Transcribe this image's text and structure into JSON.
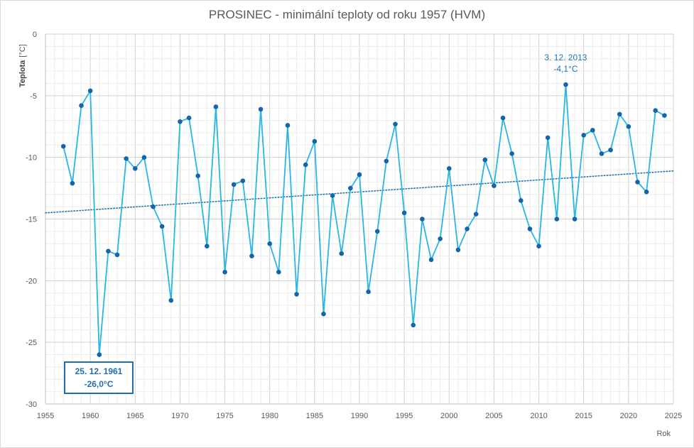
{
  "chart_data": {
    "type": "line",
    "title": "PROSINEC - minimální teploty od roku 1957 (HVM)",
    "xlabel": "Rok",
    "ylabel": "Teplota",
    "ylabel_unit": "[°C]",
    "xlim": [
      1955,
      2025
    ],
    "ylim": [
      -30,
      0
    ],
    "x_ticks": [
      "1955",
      "1960",
      "1965",
      "1970",
      "1975",
      "1980",
      "1985",
      "1990",
      "1995",
      "2000",
      "2005",
      "2010",
      "2015",
      "2020",
      "2025"
    ],
    "y_ticks": [
      "0",
      "-5",
      "-10",
      "-15",
      "-20",
      "-25",
      "-30"
    ],
    "grid": true,
    "colors": {
      "line": "#29b6e3",
      "marker": "#1565a8",
      "trend": "#1f78b4",
      "annotation": "#1f77b4"
    },
    "series": [
      {
        "x": [
          1957,
          1958,
          1959,
          1960,
          1961,
          1962,
          1963,
          1964,
          1965,
          1966,
          1967,
          1968,
          1969,
          1970,
          1971,
          1972,
          1973,
          1974,
          1975,
          1976,
          1977,
          1978,
          1979,
          1980,
          1981,
          1982,
          1983,
          1984,
          1985,
          1986,
          1987,
          1988,
          1989,
          1990,
          1991,
          1992,
          1993,
          1994,
          1995,
          1996,
          1997,
          1998,
          1999,
          2000,
          2001,
          2002,
          2003,
          2004,
          2005,
          2006,
          2007,
          2008,
          2009,
          2010,
          2011,
          2012,
          2013,
          2014,
          2015,
          2016,
          2017,
          2018,
          2019,
          2020,
          2021,
          2022,
          2023,
          2024
        ],
        "values": [
          -9.1,
          -12.1,
          -5.8,
          -4.6,
          -26.0,
          -17.6,
          -17.9,
          -10.1,
          -10.9,
          -10.0,
          -14.0,
          -15.6,
          -21.6,
          -7.1,
          -6.8,
          -11.5,
          -17.2,
          -5.9,
          -19.3,
          -12.2,
          -11.9,
          -18.0,
          -6.1,
          -17.0,
          -19.3,
          -7.4,
          -21.1,
          -10.6,
          -8.7,
          -22.7,
          -13.1,
          -17.8,
          -12.5,
          -11.4,
          -20.9,
          -16.0,
          -10.3,
          -7.3,
          -14.5,
          -23.6,
          -15.0,
          -18.3,
          -16.6,
          -10.9,
          -17.5,
          -15.8,
          -14.6,
          -10.2,
          -12.3,
          -6.8,
          -9.7,
          -13.5,
          -15.8,
          -17.2,
          -8.4,
          -15.0,
          -4.1,
          -15.0,
          -8.2,
          -7.8,
          -9.7,
          -9.4,
          -6.5,
          -7.5,
          -12.0,
          -12.8,
          -6.2,
          -6.6
        ]
      }
    ],
    "trendline": {
      "type": "linear",
      "x": [
        1955,
        2025
      ],
      "values": [
        -14.5,
        -11.1
      ]
    },
    "annotations": [
      {
        "x": 2013,
        "value": -4.1,
        "date": "3. 12. 2013",
        "text": "-4,1°C",
        "boxed": false
      },
      {
        "x": 1961,
        "value": -26.0,
        "date": "25. 12. 1961",
        "text": "-26,0°C",
        "boxed": true
      }
    ]
  }
}
